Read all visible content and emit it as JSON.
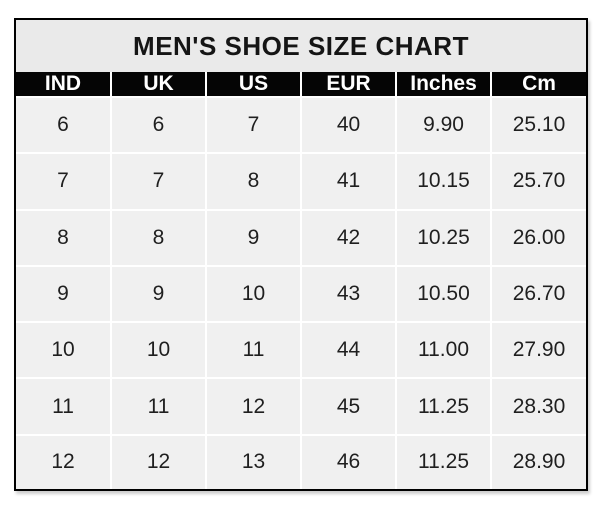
{
  "chart_data": {
    "type": "table",
    "title": "MEN'S SHOE SIZE CHART",
    "columns": [
      "IND",
      "UK",
      "US",
      "EUR",
      "Inches",
      "Cm"
    ],
    "rows": [
      [
        "6",
        "6",
        "7",
        "40",
        "9.90",
        "25.10"
      ],
      [
        "7",
        "7",
        "8",
        "41",
        "10.15",
        "25.70"
      ],
      [
        "8",
        "8",
        "9",
        "42",
        "10.25",
        "26.00"
      ],
      [
        "9",
        "9",
        "10",
        "43",
        "10.50",
        "26.70"
      ],
      [
        "10",
        "10",
        "11",
        "44",
        "11.00",
        "27.90"
      ],
      [
        "11",
        "11",
        "12",
        "45",
        "11.25",
        "28.30"
      ],
      [
        "12",
        "12",
        "13",
        "46",
        "11.25",
        "28.90"
      ]
    ],
    "layout": {
      "grid": "white internal gridlines",
      "header_position": "top"
    }
  },
  "colors": {
    "outer_border": "#000000",
    "title_bg": "#eaeaea",
    "title_text": "#151515",
    "header_bg": "#050505",
    "header_text": "#ffffff",
    "cell_bg": "#f0f0f0",
    "cell_text": "#1f1f1f",
    "gridline": "#ffffff",
    "page_bg": "#ffffff"
  }
}
